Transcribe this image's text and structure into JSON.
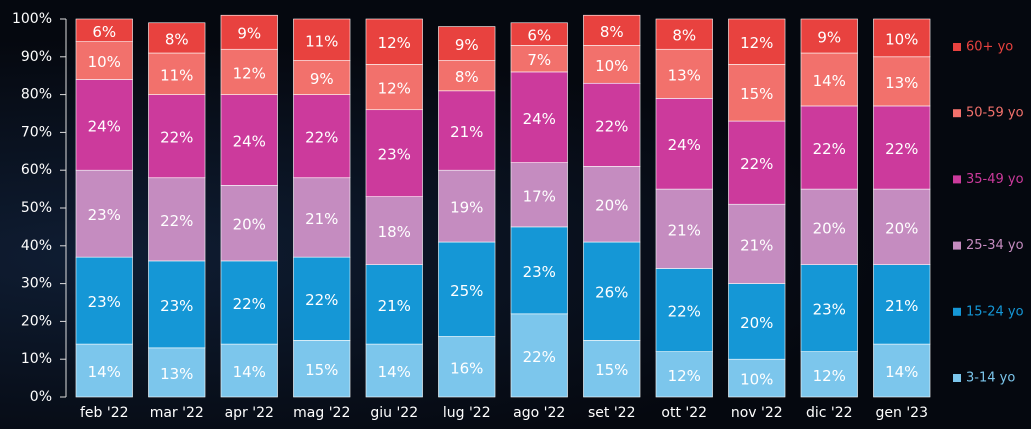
{
  "chart_data": {
    "type": "stacked_bar",
    "categories": [
      "feb '22",
      "mar '22",
      "apr '22",
      "mag '22",
      "giu '22",
      "lug '22",
      "ago '22",
      "set '22",
      "ott '22",
      "nov '22",
      "dic '22",
      "gen '23"
    ],
    "series": [
      {
        "name": "3-14 yo",
        "color": "#7cc6ec",
        "values": [
          14,
          13,
          14,
          15,
          14,
          16,
          22,
          15,
          12,
          10,
          12,
          14
        ],
        "value_labels": [
          "14%",
          "13%",
          "14%",
          "15%",
          "14%",
          "16%",
          "22%",
          "15%",
          "12%",
          "10%",
          "12%",
          "14%"
        ]
      },
      {
        "name": "15-24 yo",
        "color": "#1597d6",
        "values": [
          23,
          23,
          22,
          22,
          21,
          25,
          23,
          26,
          22,
          20,
          23,
          21
        ],
        "value_labels": [
          "23%",
          "23%",
          "22%",
          "22%",
          "21%",
          "25%",
          "23%",
          "26%",
          "22%",
          "20%",
          "23%",
          "21%"
        ]
      },
      {
        "name": "25-34 yo",
        "color": "#c58cc0",
        "values": [
          23,
          22,
          20,
          21,
          18,
          19,
          17,
          20,
          21,
          21,
          20,
          20
        ],
        "value_labels": [
          "23%",
          "22%",
          "20%",
          "21%",
          "18%",
          "19%",
          "17%",
          "20%",
          "21%",
          "21%",
          "20%",
          "20%"
        ]
      },
      {
        "name": "35-49 yo",
        "color": "#cc3a9c",
        "values": [
          24,
          22,
          24,
          22,
          23,
          21,
          24,
          22,
          24,
          22,
          22,
          22
        ],
        "value_labels": [
          "24%",
          "22%",
          "24%",
          "22%",
          "23%",
          "21%",
          "24%",
          "22%",
          "24%",
          "22%",
          "22%",
          "22%"
        ]
      },
      {
        "name": "50-59 yo",
        "color": "#f2716c",
        "values": [
          10,
          11,
          12,
          9,
          12,
          8,
          7,
          10,
          13,
          15,
          14,
          13
        ],
        "value_labels": [
          "10%",
          "11%",
          "12%",
          "9%",
          "12%",
          "8%",
          "7%",
          "10%",
          "13%",
          "15%",
          "14%",
          "13%"
        ]
      },
      {
        "name": "60+ yo",
        "color": "#e8423f",
        "values": [
          6,
          8,
          9,
          11,
          12,
          9,
          6,
          8,
          8,
          12,
          9,
          10
        ],
        "value_labels": [
          "6%",
          "8%",
          "9%",
          "11%",
          "12%",
          "9%",
          "6%",
          "8%",
          "8%",
          "12%",
          "9%",
          "10%"
        ]
      }
    ],
    "ylim": [
      0,
      100
    ],
    "yticks": [
      {
        "value": 0,
        "label": "0%"
      },
      {
        "value": 10,
        "label": "10%"
      },
      {
        "value": 20,
        "label": "20%"
      },
      {
        "value": 30,
        "label": "30%"
      },
      {
        "value": 40,
        "label": "40%"
      },
      {
        "value": 50,
        "label": "50%"
      },
      {
        "value": 60,
        "label": "60%"
      },
      {
        "value": 70,
        "label": "70%"
      },
      {
        "value": 80,
        "label": "80%"
      },
      {
        "value": 90,
        "label": "90%"
      },
      {
        "value": 100,
        "label": "100%"
      }
    ],
    "legend": "right"
  }
}
